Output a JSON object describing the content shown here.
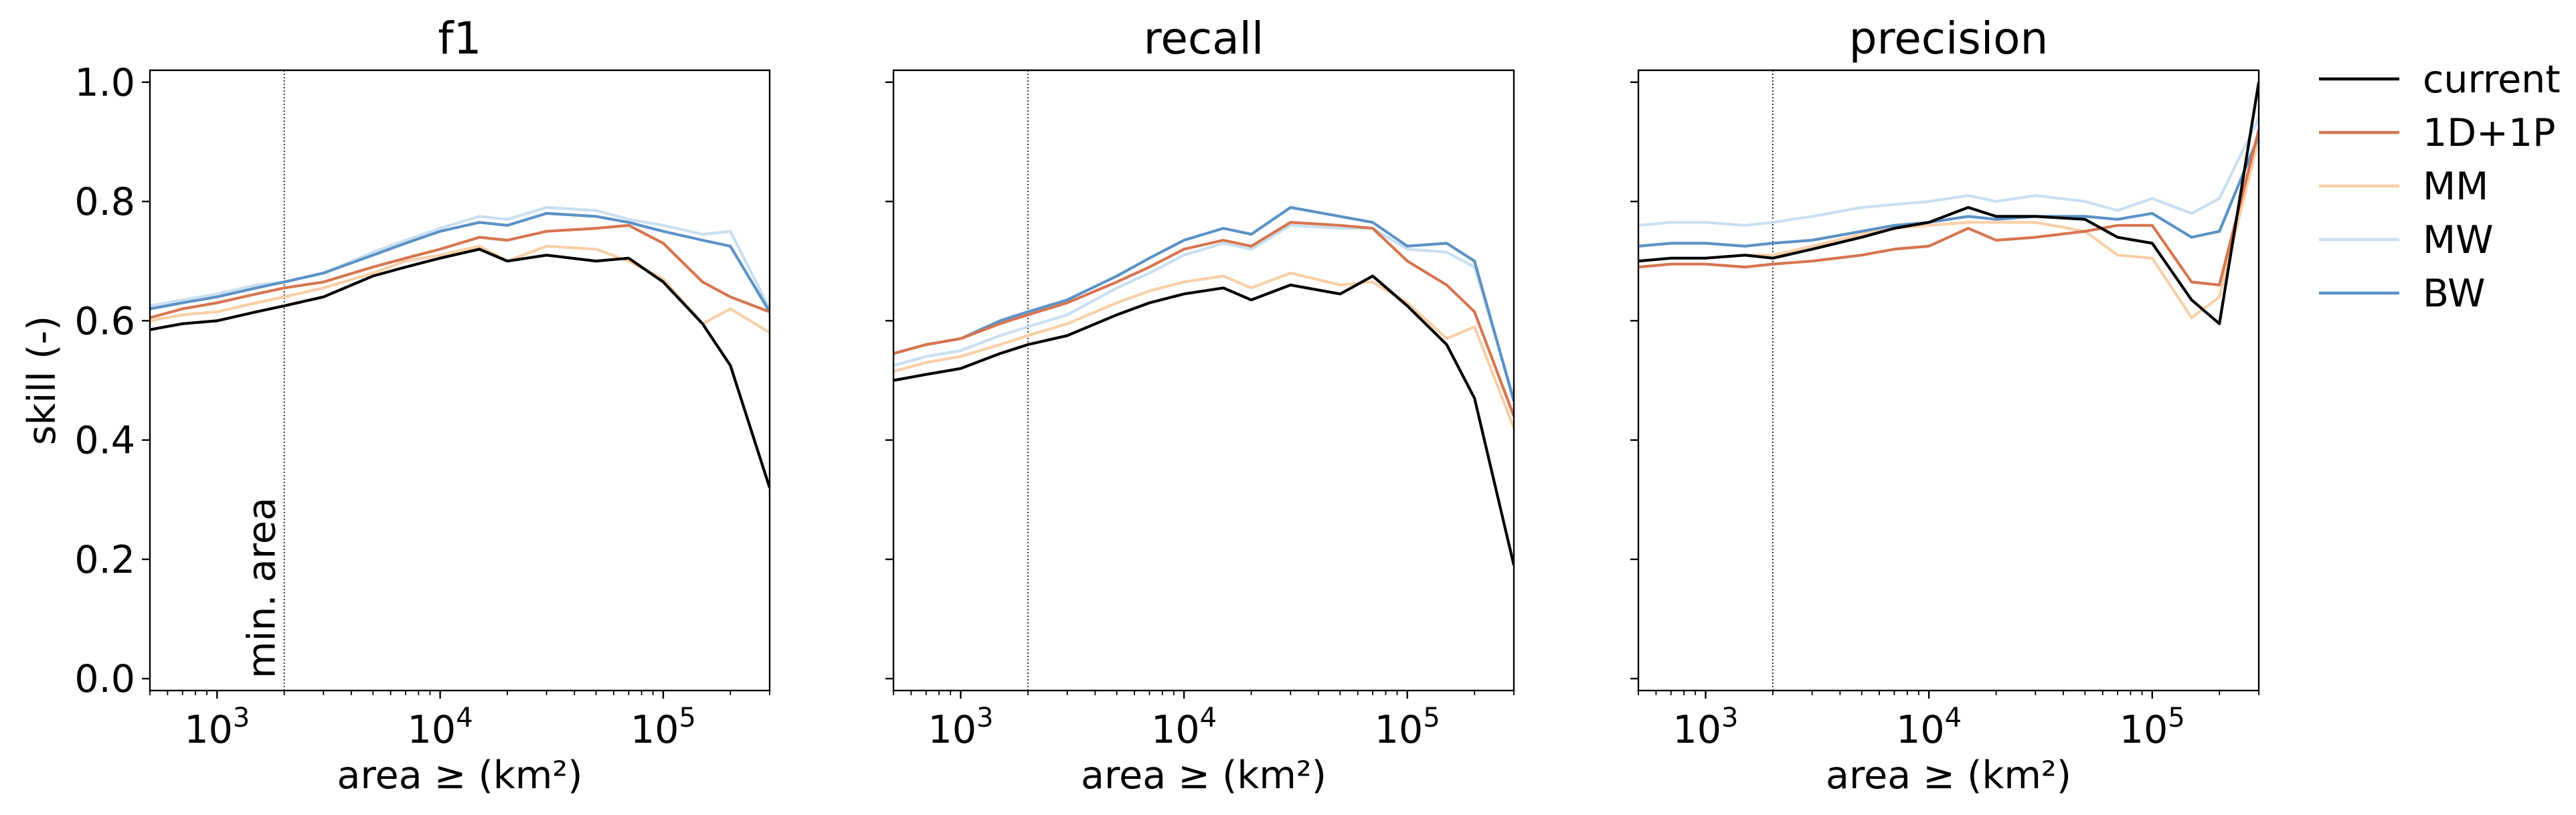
{
  "chart_data": [
    {
      "type": "line",
      "title": "f1",
      "xlabel": "area ≥ (km²)",
      "ylabel": "skill (-)",
      "xscale": "log",
      "xlim": [
        500,
        300000
      ],
      "ylim": [
        -0.02,
        1.02
      ],
      "yticks": [
        "0.0",
        "0.2",
        "0.4",
        "0.6",
        "0.8",
        "1.0"
      ],
      "xticks": [
        {
          "base": "10",
          "exp": "3"
        },
        {
          "base": "10",
          "exp": "4"
        },
        {
          "base": "10",
          "exp": "5"
        }
      ],
      "annotation": {
        "text": "min. area",
        "x": 2000
      },
      "x": [
        500,
        700,
        1000,
        1500,
        2000,
        3000,
        5000,
        7000,
        10000,
        15000,
        20000,
        30000,
        50000,
        70000,
        100000,
        150000,
        200000,
        300000
      ],
      "series": [
        {
          "name": "current",
          "values": [
            0.585,
            0.595,
            0.6,
            0.615,
            0.625,
            0.64,
            0.675,
            0.69,
            0.705,
            0.72,
            0.7,
            0.71,
            0.7,
            0.705,
            0.665,
            0.595,
            0.525,
            0.32
          ]
        },
        {
          "name": "1D+1P",
          "values": [
            0.605,
            0.62,
            0.63,
            0.645,
            0.655,
            0.665,
            0.69,
            0.705,
            0.72,
            0.74,
            0.735,
            0.75,
            0.755,
            0.76,
            0.73,
            0.665,
            0.64,
            0.615
          ]
        },
        {
          "name": "MM",
          "values": [
            0.6,
            0.61,
            0.615,
            0.63,
            0.64,
            0.655,
            0.68,
            0.7,
            0.71,
            0.725,
            0.7,
            0.725,
            0.72,
            0.7,
            0.67,
            0.595,
            0.62,
            0.58
          ]
        },
        {
          "name": "MW",
          "values": [
            0.625,
            0.635,
            0.645,
            0.66,
            0.665,
            0.68,
            0.715,
            0.735,
            0.755,
            0.775,
            0.77,
            0.79,
            0.785,
            0.77,
            0.76,
            0.745,
            0.75,
            0.62
          ]
        },
        {
          "name": "BW",
          "values": [
            0.62,
            0.63,
            0.64,
            0.655,
            0.665,
            0.68,
            0.71,
            0.73,
            0.75,
            0.765,
            0.76,
            0.78,
            0.775,
            0.765,
            0.75,
            0.735,
            0.725,
            0.615
          ]
        }
      ]
    },
    {
      "type": "line",
      "title": "recall",
      "xlabel": "area ≥ (km²)",
      "ylabel": "",
      "xscale": "log",
      "xlim": [
        500,
        300000
      ],
      "ylim": [
        -0.02,
        1.02
      ],
      "yticks": [],
      "xticks": [
        {
          "base": "10",
          "exp": "3"
        },
        {
          "base": "10",
          "exp": "4"
        },
        {
          "base": "10",
          "exp": "5"
        }
      ],
      "x": [
        500,
        700,
        1000,
        1500,
        2000,
        3000,
        5000,
        7000,
        10000,
        15000,
        20000,
        30000,
        50000,
        70000,
        100000,
        150000,
        200000,
        300000
      ],
      "series": [
        {
          "name": "current",
          "values": [
            0.5,
            0.51,
            0.52,
            0.545,
            0.56,
            0.575,
            0.61,
            0.63,
            0.645,
            0.655,
            0.635,
            0.66,
            0.645,
            0.675,
            0.625,
            0.56,
            0.47,
            0.19
          ]
        },
        {
          "name": "1D+1P",
          "values": [
            0.545,
            0.56,
            0.57,
            0.595,
            0.61,
            0.63,
            0.665,
            0.69,
            0.72,
            0.735,
            0.725,
            0.765,
            0.76,
            0.755,
            0.7,
            0.66,
            0.615,
            0.44
          ]
        },
        {
          "name": "MM",
          "values": [
            0.515,
            0.53,
            0.54,
            0.56,
            0.575,
            0.595,
            0.63,
            0.65,
            0.665,
            0.675,
            0.655,
            0.68,
            0.66,
            0.665,
            0.63,
            0.57,
            0.59,
            0.42
          ]
        },
        {
          "name": "MW",
          "values": [
            0.525,
            0.54,
            0.55,
            0.575,
            0.59,
            0.61,
            0.655,
            0.68,
            0.71,
            0.73,
            0.72,
            0.76,
            0.755,
            0.755,
            0.72,
            0.715,
            0.69,
            0.47
          ]
        },
        {
          "name": "BW",
          "values": [
            0.545,
            0.56,
            0.57,
            0.6,
            0.615,
            0.635,
            0.675,
            0.705,
            0.735,
            0.755,
            0.745,
            0.79,
            0.775,
            0.765,
            0.725,
            0.73,
            0.7,
            0.465
          ]
        }
      ]
    },
    {
      "type": "line",
      "title": "precision",
      "xlabel": "area ≥ (km²)",
      "ylabel": "",
      "xscale": "log",
      "xlim": [
        500,
        300000
      ],
      "ylim": [
        -0.02,
        1.02
      ],
      "yticks": [],
      "xticks": [
        {
          "base": "10",
          "exp": "3"
        },
        {
          "base": "10",
          "exp": "4"
        },
        {
          "base": "10",
          "exp": "5"
        }
      ],
      "x": [
        500,
        700,
        1000,
        1500,
        2000,
        3000,
        5000,
        7000,
        10000,
        15000,
        20000,
        30000,
        50000,
        70000,
        100000,
        150000,
        200000,
        300000
      ],
      "series": [
        {
          "name": "current",
          "values": [
            0.7,
            0.705,
            0.705,
            0.71,
            0.705,
            0.72,
            0.74,
            0.755,
            0.765,
            0.79,
            0.775,
            0.775,
            0.77,
            0.74,
            0.73,
            0.635,
            0.595,
            1.0
          ]
        },
        {
          "name": "1D+1P",
          "values": [
            0.69,
            0.695,
            0.695,
            0.69,
            0.695,
            0.7,
            0.71,
            0.72,
            0.725,
            0.755,
            0.735,
            0.74,
            0.75,
            0.76,
            0.76,
            0.665,
            0.66,
            0.92
          ]
        },
        {
          "name": "MM",
          "values": [
            0.7,
            0.705,
            0.705,
            0.71,
            0.71,
            0.725,
            0.745,
            0.755,
            0.76,
            0.765,
            0.765,
            0.765,
            0.75,
            0.71,
            0.705,
            0.605,
            0.64,
            0.905
          ]
        },
        {
          "name": "MW",
          "values": [
            0.76,
            0.765,
            0.765,
            0.76,
            0.765,
            0.775,
            0.79,
            0.795,
            0.8,
            0.81,
            0.8,
            0.81,
            0.8,
            0.785,
            0.805,
            0.78,
            0.805,
            0.94
          ]
        },
        {
          "name": "BW",
          "values": [
            0.725,
            0.73,
            0.73,
            0.725,
            0.73,
            0.735,
            0.75,
            0.76,
            0.765,
            0.775,
            0.77,
            0.775,
            0.775,
            0.77,
            0.78,
            0.74,
            0.75,
            0.91
          ]
        }
      ]
    }
  ],
  "legend": {
    "placement": "right",
    "entries": [
      {
        "name": "current",
        "color": "#000000"
      },
      {
        "name": "1D+1P",
        "color": "#d67550"
      },
      {
        "name": "MM",
        "color": "#f8cfa7"
      },
      {
        "name": "MW",
        "color": "#c8dff0"
      },
      {
        "name": "BW",
        "color": "#5b92c6"
      }
    ]
  },
  "colors": {
    "current": "#000000",
    "1D+1P": "#d67550",
    "MM": "#f8cfa7",
    "MW": "#c8dff0",
    "BW": "#5b92c6"
  }
}
